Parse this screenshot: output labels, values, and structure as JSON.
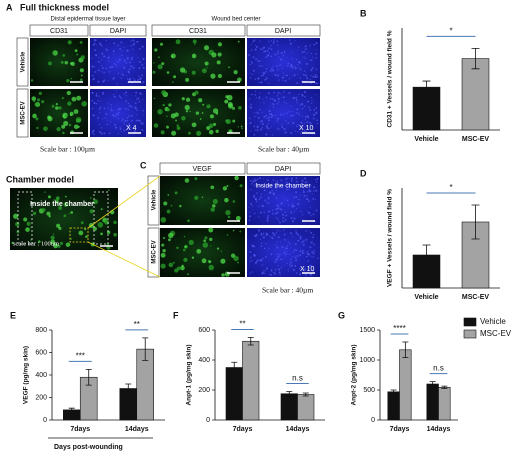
{
  "panels": {
    "A": {
      "letter": "A",
      "title": "Full thickness model",
      "left_caption": "Distal epidermal tissue layer",
      "right_caption": "Wound bed center",
      "columns": [
        "CD31",
        "DAPI",
        "CD31",
        "DAPI"
      ],
      "rows": [
        "Vehicle",
        "MSC-EV"
      ],
      "magnification": [
        "X 4",
        "X 10"
      ],
      "scale": [
        "Scale bar : 100µm",
        "Scale bar : 40µm"
      ]
    },
    "chamber": {
      "title": "Chamber model",
      "label": "Inside the chamber",
      "scale": "scale bar : 100um"
    },
    "C": {
      "letter": "C",
      "columns": [
        "VEGF",
        "DAPI"
      ],
      "rows": [
        "Vehicle",
        "MSC-EV"
      ],
      "inside": "Inside the chamber",
      "magnification": "X 10",
      "scale": "Scale bar : 40µm"
    }
  },
  "chart_data": [
    {
      "type": "bar",
      "panel": "B",
      "ylabel": "CD31 + Vessels / wound field %",
      "categories": [
        "Vehicle",
        "MSC-EV"
      ],
      "values": [
        10.5,
        17.5
      ],
      "errors": [
        1.5,
        2.5
      ],
      "colors": [
        "#111111",
        "#a3a3a3"
      ],
      "ylim": [
        0,
        25
      ],
      "significance": "*"
    },
    {
      "type": "bar",
      "panel": "D",
      "ylabel": "VEGF + Vessels / wound field %",
      "categories": [
        "Vehicle",
        "MSC-EV"
      ],
      "values": [
        16.5,
        33
      ],
      "errors": [
        5,
        8.5
      ],
      "colors": [
        "#111111",
        "#a3a3a3"
      ],
      "ylim": [
        0,
        50
      ],
      "significance": "*"
    },
    {
      "type": "grouped-bar",
      "panel": "E",
      "ylabel": "VEGF (pg/mg skin)",
      "xlabel": "Days post-wounding",
      "categories": [
        "7days",
        "14days"
      ],
      "series": [
        {
          "color": "#111111",
          "values": [
            90,
            280
          ],
          "errors": [
            15,
            40
          ]
        },
        {
          "color": "#a3a3a3",
          "values": [
            380,
            630
          ],
          "errors": [
            70,
            100
          ]
        }
      ],
      "ylim": [
        0,
        800
      ],
      "yticks": [
        0,
        200,
        400,
        600,
        800
      ],
      "significance": [
        "***",
        "**"
      ]
    },
    {
      "type": "grouped-bar",
      "panel": "F",
      "ylabel": "Anpt-1 (pg/mg skin)",
      "categories": [
        "7days",
        "14days"
      ],
      "series": [
        {
          "color": "#111111",
          "values": [
            350,
            175
          ],
          "errors": [
            35,
            15
          ]
        },
        {
          "color": "#a3a3a3",
          "values": [
            525,
            170
          ],
          "errors": [
            25,
            10
          ]
        }
      ],
      "ylim": [
        0,
        600
      ],
      "yticks": [
        0,
        200,
        400,
        600
      ],
      "significance": [
        "**",
        "n.s"
      ]
    },
    {
      "type": "grouped-bar",
      "panel": "G",
      "ylabel": "Anpt-2 (pg/mg skin)",
      "categories": [
        "7days",
        "14days"
      ],
      "series": [
        {
          "name": "Vehicle",
          "color": "#111111",
          "values": [
            470,
            600
          ],
          "errors": [
            30,
            40
          ]
        },
        {
          "name": "MSC-EV",
          "color": "#a3a3a3",
          "values": [
            1170,
            545
          ],
          "errors": [
            130,
            20
          ]
        }
      ],
      "ylim": [
        0,
        1500
      ],
      "yticks": [
        0,
        500,
        1000,
        1500
      ],
      "significance": [
        "****",
        "n.s"
      ]
    }
  ]
}
